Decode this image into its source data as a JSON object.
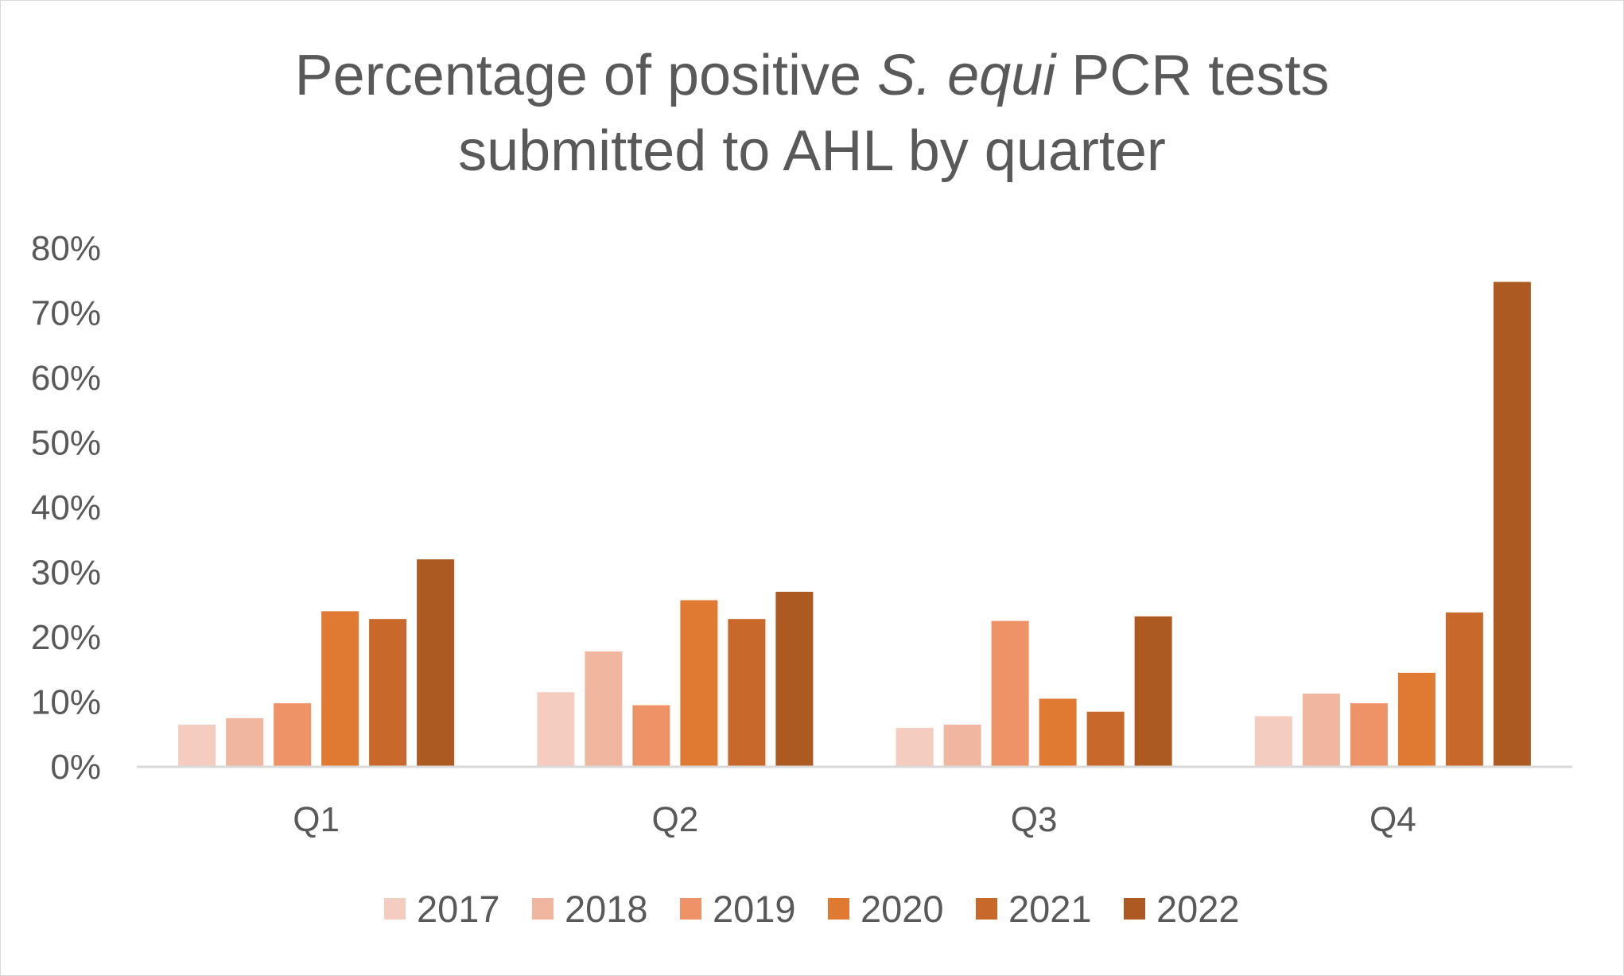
{
  "chart_data": {
    "type": "bar",
    "title": {
      "line1_before": "Percentage of positive ",
      "line1_italic": "S. equi",
      "line1_after": " PCR tests",
      "line2": "submitted to AHL by quarter"
    },
    "xlabel": "",
    "ylabel": "",
    "categories": [
      "Q1",
      "Q2",
      "Q3",
      "Q4"
    ],
    "ylim": [
      0,
      80
    ],
    "yticks": [
      0,
      10,
      20,
      30,
      40,
      50,
      60,
      70,
      80
    ],
    "ytick_labels": [
      "0%",
      "10%",
      "20%",
      "30%",
      "40%",
      "50%",
      "60%",
      "70%",
      "80%"
    ],
    "gridlines": false,
    "legend_position": "bottom",
    "series": [
      {
        "name": "2017",
        "color": "#F5CCC0",
        "values": [
          6.5,
          11.5,
          6,
          7.8
        ]
      },
      {
        "name": "2018",
        "color": "#F1B69F",
        "values": [
          7.5,
          17.8,
          6.5,
          11.3
        ]
      },
      {
        "name": "2019",
        "color": "#EE9368",
        "values": [
          9.8,
          9.5,
          22.5,
          9.8
        ]
      },
      {
        "name": "2020",
        "color": "#E07A33",
        "values": [
          24,
          25.7,
          10.5,
          14.5
        ]
      },
      {
        "name": "2021",
        "color": "#C8692B",
        "values": [
          22.8,
          22.8,
          8.5,
          23.8
        ]
      },
      {
        "name": "2022",
        "color": "#AC5A22",
        "values": [
          32,
          27,
          23.2,
          74.8
        ]
      }
    ]
  }
}
